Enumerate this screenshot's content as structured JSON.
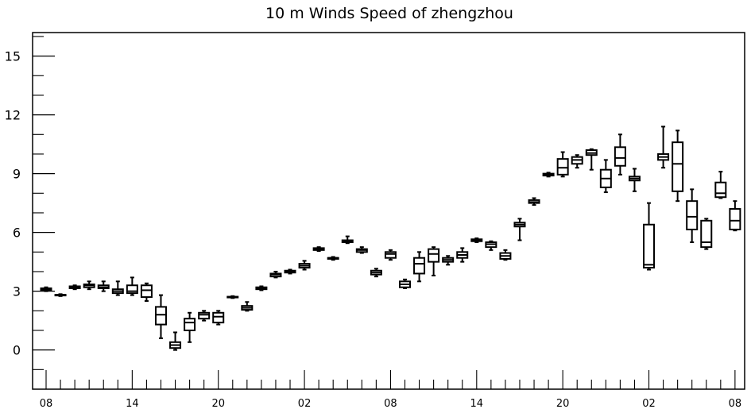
{
  "chart_data": {
    "type": "box",
    "title": "10 m Winds Speed of zhengzhou",
    "xlabel": "",
    "ylabel": "",
    "ylim": [
      -2,
      16.2
    ],
    "yticks": [
      0,
      3,
      6,
      9,
      12,
      15
    ],
    "x_tick_labels": [
      "08",
      "14",
      "20",
      "02",
      "08",
      "14",
      "20",
      "02",
      "08"
    ],
    "grid": false,
    "boxes": [
      {
        "min": 3.0,
        "q1": 3.05,
        "median": 3.1,
        "q3": 3.15,
        "max": 3.2
      },
      {
        "min": 2.75,
        "q1": 2.78,
        "median": 2.8,
        "q3": 2.82,
        "max": 2.85
      },
      {
        "min": 3.1,
        "q1": 3.15,
        "median": 3.2,
        "q3": 3.25,
        "max": 3.3
      },
      {
        "min": 3.1,
        "q1": 3.2,
        "median": 3.3,
        "q3": 3.35,
        "max": 3.5
      },
      {
        "min": 3.0,
        "q1": 3.15,
        "median": 3.2,
        "q3": 3.3,
        "max": 3.5
      },
      {
        "min": 2.8,
        "q1": 2.9,
        "median": 3.0,
        "q3": 3.1,
        "max": 3.5
      },
      {
        "min": 2.8,
        "q1": 2.9,
        "median": 3.0,
        "q3": 3.3,
        "max": 3.7
      },
      {
        "min": 2.5,
        "q1": 2.7,
        "median": 3.05,
        "q3": 3.3,
        "max": 3.4
      },
      {
        "min": 0.6,
        "q1": 1.3,
        "median": 1.8,
        "q3": 2.2,
        "max": 2.8
      },
      {
        "min": 0.0,
        "q1": 0.1,
        "median": 0.25,
        "q3": 0.4,
        "max": 0.9
      },
      {
        "min": 0.4,
        "q1": 1.0,
        "median": 1.4,
        "q3": 1.6,
        "max": 1.9
      },
      {
        "min": 1.5,
        "q1": 1.6,
        "median": 1.8,
        "q3": 1.9,
        "max": 2.0
      },
      {
        "min": 1.3,
        "q1": 1.4,
        "median": 1.7,
        "q3": 1.9,
        "max": 2.0
      },
      {
        "min": 2.65,
        "q1": 2.68,
        "median": 2.7,
        "q3": 2.72,
        "max": 2.75
      },
      {
        "min": 2.0,
        "q1": 2.05,
        "median": 2.15,
        "q3": 2.25,
        "max": 2.45
      },
      {
        "min": 3.05,
        "q1": 3.1,
        "median": 3.15,
        "q3": 3.2,
        "max": 3.25
      },
      {
        "min": 3.7,
        "q1": 3.75,
        "median": 3.85,
        "q3": 3.9,
        "max": 4.0
      },
      {
        "min": 3.9,
        "q1": 3.95,
        "median": 4.0,
        "q3": 4.05,
        "max": 4.1
      },
      {
        "min": 4.1,
        "q1": 4.2,
        "median": 4.3,
        "q3": 4.4,
        "max": 4.55
      },
      {
        "min": 5.05,
        "q1": 5.1,
        "median": 5.15,
        "q3": 5.2,
        "max": 5.25
      },
      {
        "min": 4.6,
        "q1": 4.65,
        "median": 4.7,
        "q3": 4.7,
        "max": 4.75
      },
      {
        "min": 5.45,
        "q1": 5.5,
        "median": 5.55,
        "q3": 5.6,
        "max": 5.8
      },
      {
        "min": 4.95,
        "q1": 5.0,
        "median": 5.1,
        "q3": 5.15,
        "max": 5.25
      },
      {
        "min": 3.75,
        "q1": 3.85,
        "median": 3.95,
        "q3": 4.05,
        "max": 4.15
      },
      {
        "min": 4.6,
        "q1": 4.7,
        "median": 4.9,
        "q3": 5.0,
        "max": 5.1
      },
      {
        "min": 3.15,
        "q1": 3.2,
        "median": 3.35,
        "q3": 3.5,
        "max": 3.6
      },
      {
        "min": 3.5,
        "q1": 3.9,
        "median": 4.4,
        "q3": 4.7,
        "max": 5.0
      },
      {
        "min": 3.8,
        "q1": 4.5,
        "median": 4.9,
        "q3": 5.15,
        "max": 5.25
      },
      {
        "min": 4.35,
        "q1": 4.5,
        "median": 4.6,
        "q3": 4.7,
        "max": 4.8
      },
      {
        "min": 4.5,
        "q1": 4.7,
        "median": 4.85,
        "q3": 5.0,
        "max": 5.2
      },
      {
        "min": 5.5,
        "q1": 5.55,
        "median": 5.6,
        "q3": 5.65,
        "max": 5.7
      },
      {
        "min": 5.1,
        "q1": 5.25,
        "median": 5.4,
        "q3": 5.5,
        "max": 5.55
      },
      {
        "min": 4.6,
        "q1": 4.65,
        "median": 4.8,
        "q3": 4.95,
        "max": 5.1
      },
      {
        "min": 5.6,
        "q1": 6.3,
        "median": 6.4,
        "q3": 6.5,
        "max": 6.7
      },
      {
        "min": 7.4,
        "q1": 7.5,
        "median": 7.55,
        "q3": 7.65,
        "max": 7.75
      },
      {
        "min": 8.85,
        "q1": 8.9,
        "median": 8.95,
        "q3": 9.0,
        "max": 9.05
      },
      {
        "min": 8.85,
        "q1": 8.95,
        "median": 9.3,
        "q3": 9.75,
        "max": 10.1
      },
      {
        "min": 9.3,
        "q1": 9.5,
        "median": 9.7,
        "q3": 9.85,
        "max": 9.95
      },
      {
        "min": 9.2,
        "q1": 9.95,
        "median": 10.05,
        "q3": 10.2,
        "max": 10.25
      },
      {
        "min": 8.05,
        "q1": 8.3,
        "median": 8.75,
        "q3": 9.2,
        "max": 9.7
      },
      {
        "min": 8.95,
        "q1": 9.4,
        "median": 9.8,
        "q3": 10.35,
        "max": 11.0
      },
      {
        "min": 8.1,
        "q1": 8.65,
        "median": 8.75,
        "q3": 8.85,
        "max": 9.25
      },
      {
        "min": 4.1,
        "q1": 4.2,
        "median": 4.35,
        "q3": 6.4,
        "max": 7.5
      },
      {
        "min": 9.3,
        "q1": 9.7,
        "median": 9.85,
        "q3": 10.0,
        "max": 11.4
      },
      {
        "min": 7.6,
        "q1": 8.1,
        "median": 9.5,
        "q3": 10.6,
        "max": 11.2
      },
      {
        "min": 5.5,
        "q1": 6.15,
        "median": 6.8,
        "q3": 7.6,
        "max": 8.2
      },
      {
        "min": 5.15,
        "q1": 5.25,
        "median": 5.5,
        "q3": 6.6,
        "max": 6.7
      },
      {
        "min": 7.75,
        "q1": 7.8,
        "median": 8.0,
        "q3": 8.55,
        "max": 9.1
      },
      {
        "min": 6.1,
        "q1": 6.15,
        "median": 6.6,
        "q3": 7.2,
        "max": 7.6
      }
    ]
  }
}
